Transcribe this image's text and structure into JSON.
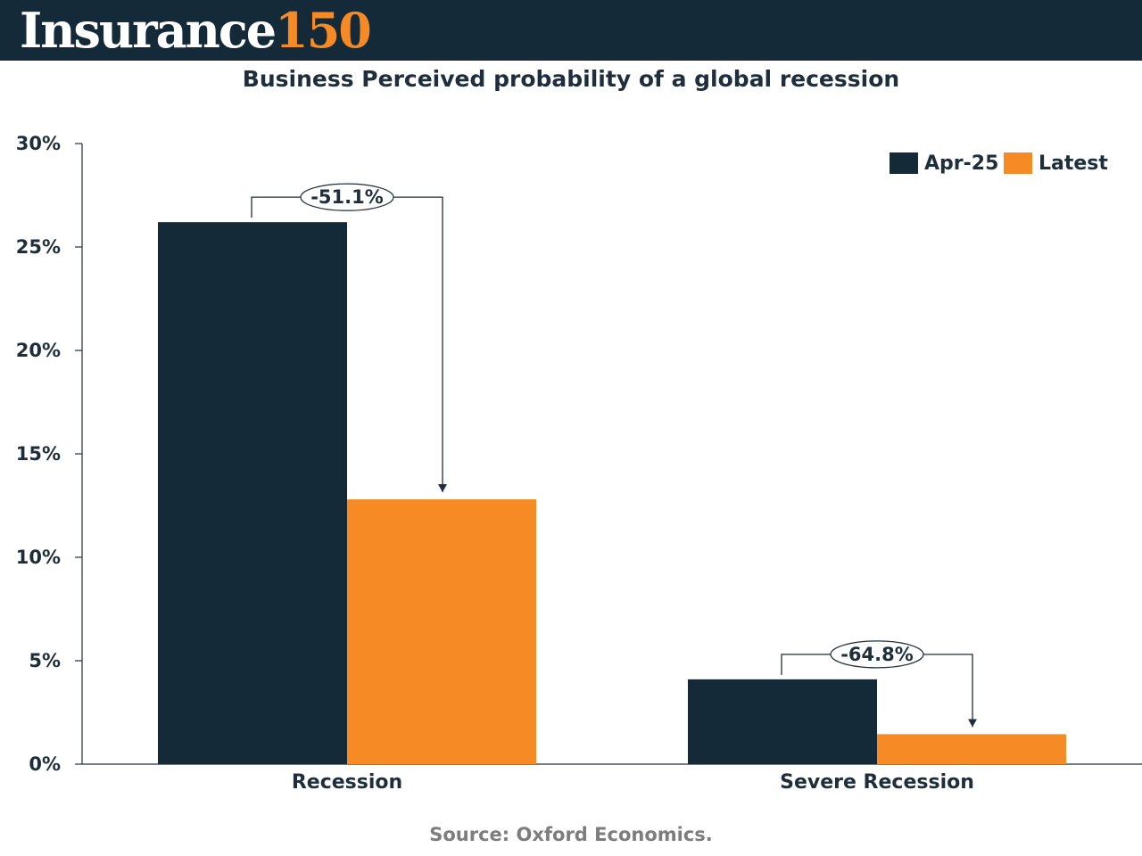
{
  "header": {
    "logo_word": "Insurance",
    "logo_number": "150"
  },
  "chart_data": {
    "type": "bar",
    "title": "Business Perceived probability of a global recession",
    "categories": [
      "Recession",
      "Severe Recession"
    ],
    "series": [
      {
        "name": "Apr-25",
        "values": [
          26.2,
          4.1
        ],
        "color": "#152a38"
      },
      {
        "name": "Latest",
        "values": [
          12.8,
          1.45
        ],
        "color": "#f68b25"
      }
    ],
    "ylim": [
      0,
      30
    ],
    "yticks": [
      0,
      5,
      10,
      15,
      20,
      25,
      30
    ],
    "ytick_labels": [
      "0%",
      "5%",
      "10%",
      "15%",
      "20%",
      "25%",
      "30%"
    ],
    "legend_position": "top-right",
    "grid": false,
    "annotations": [
      {
        "category": "Recession",
        "label": "-51.1%"
      },
      {
        "category": "Severe Recession",
        "label": "-64.8%"
      }
    ]
  },
  "footer": {
    "source": "Source: Oxford Economics."
  }
}
